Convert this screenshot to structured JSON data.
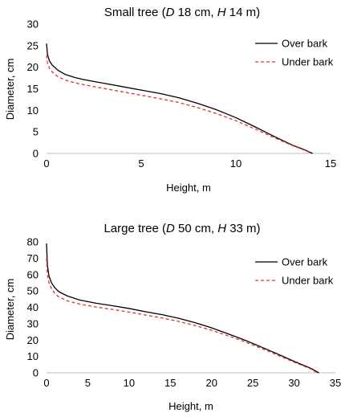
{
  "chart_data": [
    {
      "type": "line",
      "title": {
        "prefix": "Small tree (",
        "d_italic": "D",
        "d_text": " 18 cm, ",
        "h_italic": "H",
        "h_text": " 14 m)"
      },
      "xlabel": "Height, m",
      "ylabel": "Diameter, cm",
      "xlim": [
        0,
        15
      ],
      "ylim": [
        0,
        30
      ],
      "xticks": [
        0,
        5,
        10,
        15
      ],
      "yticks": [
        0,
        5,
        10,
        15,
        20,
        25,
        30
      ],
      "grid": false,
      "legend_position": "top-right",
      "series": [
        {
          "name": "Over bark",
          "color": "#000000",
          "dash": "solid",
          "x": [
            0,
            0.05,
            0.15,
            0.3,
            0.6,
            1,
            1.5,
            2,
            3,
            4,
            5,
            6,
            7,
            8,
            9,
            10,
            11,
            12,
            13,
            13.6,
            14.05
          ],
          "y": [
            25.5,
            23,
            21.5,
            20.5,
            19.3,
            18.3,
            17.6,
            17.1,
            16.3,
            15.5,
            14.7,
            13.9,
            12.9,
            11.6,
            10.1,
            8.3,
            6.2,
            4.0,
            1.9,
            0.9,
            0
          ]
        },
        {
          "name": "Under bark",
          "color": "#e3342f",
          "dash": "4,3",
          "x": [
            0,
            0.05,
            0.15,
            0.3,
            0.6,
            1,
            1.5,
            2,
            3,
            4,
            5,
            6,
            7,
            8,
            9,
            10,
            11,
            12,
            13,
            13.6,
            14.0
          ],
          "y": [
            22.8,
            21,
            19.8,
            18.9,
            17.8,
            17,
            16.4,
            15.9,
            15.1,
            14.3,
            13.5,
            12.7,
            11.8,
            10.6,
            9.2,
            7.6,
            5.7,
            3.7,
            1.8,
            0.8,
            0
          ]
        }
      ]
    },
    {
      "type": "line",
      "title": {
        "prefix": "Large tree (",
        "d_italic": "D",
        "d_text": " 50 cm, ",
        "h_italic": "H",
        "h_text": " 33 m)"
      },
      "xlabel": "Height, m",
      "ylabel": "Diameter, cm",
      "xlim": [
        0,
        35
      ],
      "ylim": [
        0,
        80
      ],
      "xticks": [
        0,
        5,
        10,
        15,
        20,
        25,
        30,
        35
      ],
      "yticks": [
        0,
        10,
        20,
        30,
        40,
        50,
        60,
        70,
        80
      ],
      "grid": false,
      "legend_position": "top-right",
      "series": [
        {
          "name": "Over bark",
          "color": "#000000",
          "dash": "solid",
          "x": [
            0,
            0.1,
            0.3,
            0.6,
            1,
            1.5,
            2.5,
            4,
            6,
            8,
            10,
            12,
            14,
            16,
            18,
            20,
            22,
            24,
            26,
            28,
            30,
            32,
            33
          ],
          "y": [
            79,
            66,
            59,
            55,
            52,
            49.5,
            47,
            44.5,
            42.5,
            41,
            39.3,
            37.3,
            35.5,
            33.3,
            30.6,
            27.5,
            23.8,
            20,
            15.8,
            11.5,
            7,
            2.8,
            0
          ]
        },
        {
          "name": "Under bark",
          "color": "#e3342f",
          "dash": "4,3",
          "x": [
            0,
            0.1,
            0.3,
            0.6,
            1,
            1.5,
            2.5,
            4,
            6,
            8,
            10,
            12,
            14,
            16,
            18,
            20,
            22,
            24,
            26,
            28,
            30,
            32,
            32.8
          ],
          "y": [
            70,
            60,
            55,
            51.5,
            48.5,
            46.3,
            44,
            42,
            40.2,
            38.7,
            37.1,
            35.3,
            33.5,
            31.4,
            28.9,
            26,
            22.6,
            19,
            15,
            10.8,
            6.5,
            2.4,
            0
          ]
        }
      ]
    }
  ]
}
